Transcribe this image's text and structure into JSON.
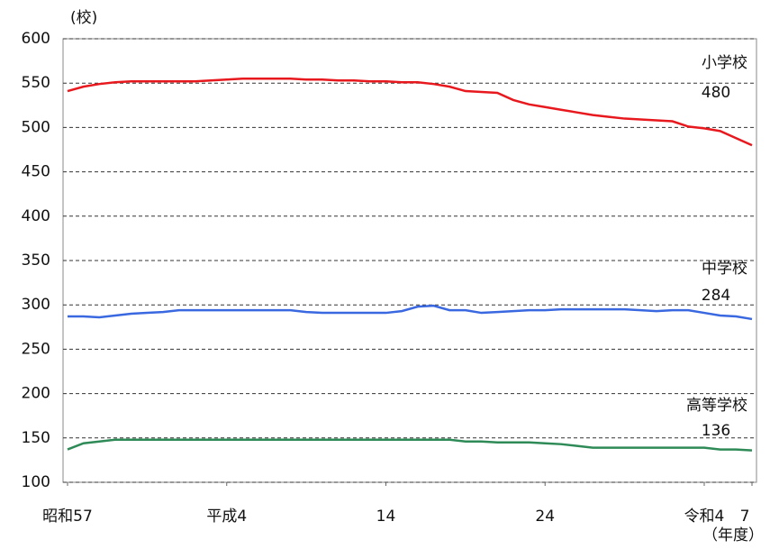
{
  "chart_data": {
    "type": "line",
    "y_unit": "(校)",
    "x_unit": "（年度）",
    "x": [
      0,
      1,
      2,
      3,
      4,
      5,
      6,
      7,
      8,
      9,
      10,
      11,
      12,
      13,
      14,
      15,
      16,
      17,
      18,
      19,
      20,
      21,
      22,
      23,
      24,
      25,
      26,
      27,
      28,
      29,
      30,
      31,
      32,
      33,
      34,
      35,
      36,
      37,
      38,
      39,
      40,
      41,
      42,
      43
    ],
    "xlim": [
      0,
      43
    ],
    "xticks": [
      {
        "value": 0,
        "label": "昭和57"
      },
      {
        "value": 10,
        "label": "平成4"
      },
      {
        "value": 20,
        "label": "14"
      },
      {
        "value": 30,
        "label": "24"
      },
      {
        "value": 40,
        "label": "令和4"
      },
      {
        "value": 43,
        "label": "7"
      }
    ],
    "ylim": [
      100,
      600
    ],
    "yticks": [
      100,
      150,
      200,
      250,
      300,
      350,
      400,
      450,
      500,
      550,
      600
    ],
    "grid": true,
    "series": [
      {
        "name": "小学校",
        "color": "#e8191e",
        "end_label": "480",
        "values": [
          541,
          546,
          549,
          551,
          552,
          552,
          552,
          552,
          552,
          553,
          554,
          555,
          555,
          555,
          555,
          554,
          554,
          553,
          553,
          552,
          552,
          551,
          551,
          549,
          546,
          541,
          540,
          539,
          531,
          526,
          523,
          520,
          517,
          514,
          512,
          510,
          509,
          508,
          507,
          501,
          499,
          496,
          488,
          480
        ]
      },
      {
        "name": "中学校",
        "color": "#3a68e0",
        "end_label": "284",
        "values": [
          287,
          287,
          286,
          288,
          290,
          291,
          292,
          294,
          294,
          294,
          294,
          294,
          294,
          294,
          294,
          292,
          291,
          291,
          291,
          291,
          291,
          293,
          298,
          299,
          294,
          294,
          291,
          292,
          293,
          294,
          294,
          295,
          295,
          295,
          295,
          295,
          294,
          293,
          294,
          294,
          291,
          288,
          287,
          284
        ]
      },
      {
        "name": "高等学校",
        "color": "#2e8b57",
        "end_label": "136",
        "values": [
          137,
          144,
          146,
          148,
          148,
          148,
          148,
          148,
          148,
          148,
          148,
          148,
          148,
          148,
          148,
          148,
          148,
          148,
          148,
          148,
          148,
          148,
          148,
          148,
          148,
          146,
          146,
          145,
          145,
          145,
          144,
          143,
          141,
          139,
          139,
          139,
          139,
          139,
          139,
          139,
          139,
          137,
          137,
          136
        ]
      }
    ]
  }
}
